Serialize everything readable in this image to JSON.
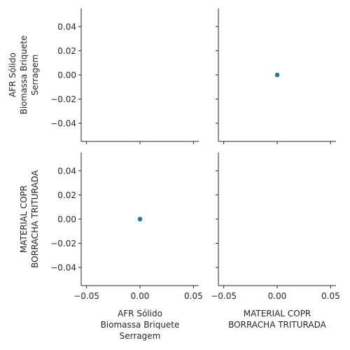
{
  "chart_data": {
    "type": "scatter",
    "layout": "pairplot-2x2",
    "variables": [
      "AFR Sólido\nBiomassa Briquete\nSerragem",
      "MATERIAL COPR\nBORRACHA TRITURADA"
    ],
    "point_color": "#1f77b4",
    "x_ticks": [
      -0.05,
      0.0,
      0.05
    ],
    "x_tick_labels": [
      "−0.05",
      "0.00",
      "0.05"
    ],
    "y_ticks": [
      -0.04,
      -0.02,
      0.0,
      0.02,
      0.04
    ],
    "y_tick_labels": [
      "−0.04",
      "−0.02",
      "0.00",
      "0.02",
      "0.04"
    ],
    "xlim": [
      -0.055,
      0.055
    ],
    "ylim": [
      -0.055,
      0.055
    ],
    "grid": false,
    "panels": [
      {
        "row": 0,
        "col": 0,
        "points": []
      },
      {
        "row": 0,
        "col": 1,
        "points": [
          {
            "x": 0.0,
            "y": 0.0
          }
        ]
      },
      {
        "row": 1,
        "col": 0,
        "points": [
          {
            "x": 0.0,
            "y": 0.0
          }
        ]
      },
      {
        "row": 1,
        "col": 1,
        "points": []
      }
    ]
  }
}
